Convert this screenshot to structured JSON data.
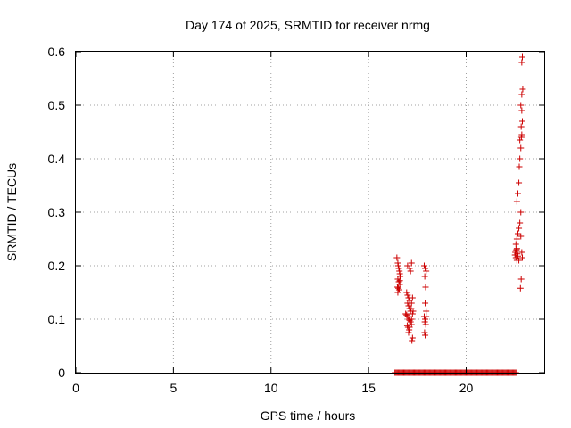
{
  "chart_data": {
    "type": "scatter",
    "title": "Day 174 of 2025, SRMTID for receiver nrmg",
    "xlabel": "GPS time / hours",
    "ylabel": "SRMTID / TECUs",
    "xlim": [
      0,
      24
    ],
    "ylim": [
      0,
      0.6
    ],
    "x_ticks": [
      "0",
      "5",
      "10",
      "15",
      "20"
    ],
    "y_ticks": [
      "0",
      "0.1",
      "0.2",
      "0.3",
      "0.4",
      "0.5",
      "0.6"
    ],
    "grid": true,
    "marker": "plus",
    "color": "#cc0000",
    "series": [
      {
        "x": [
          16.45,
          16.5,
          16.52,
          16.55,
          16.58,
          16.6,
          16.62,
          16.5,
          16.55,
          16.6,
          16.48,
          16.53,
          16.57,
          16.5,
          16.6,
          16.95,
          17.0,
          17.05,
          17.1,
          17.0,
          17.05,
          17.1,
          17.15,
          16.9,
          16.95,
          17.0,
          17.05,
          17.1,
          17.15,
          17.2,
          16.98,
          17.02,
          17.08,
          17.12,
          17.18,
          17.2,
          17.25,
          17.0,
          17.1,
          17.15,
          17.2,
          17.22,
          17.25,
          17.05,
          17.1,
          17.2,
          17.25,
          17.28,
          17.85,
          17.9,
          17.95,
          17.88,
          17.92,
          17.9,
          17.95,
          17.85,
          17.9,
          17.88,
          17.93,
          17.87,
          17.9,
          17.95,
          22.5,
          22.55,
          22.6,
          22.52,
          22.58,
          22.62,
          22.55,
          22.6,
          22.65,
          22.7,
          22.55,
          22.6,
          22.65,
          22.7,
          22.75,
          22.8,
          22.6,
          22.65,
          22.7,
          22.72,
          22.75,
          22.8,
          22.75,
          22.85,
          22.82,
          22.88,
          22.85,
          22.8,
          22.85,
          22.9,
          22.85,
          22.88,
          22.82,
          22.78,
          22.8,
          22.85,
          22.88,
          22.83
        ],
        "y": [
          0.215,
          0.205,
          0.2,
          0.195,
          0.19,
          0.185,
          0.18,
          0.175,
          0.17,
          0.165,
          0.16,
          0.158,
          0.155,
          0.15,
          0.172,
          0.15,
          0.145,
          0.14,
          0.135,
          0.13,
          0.125,
          0.12,
          0.115,
          0.11,
          0.108,
          0.105,
          0.1,
          0.098,
          0.095,
          0.09,
          0.088,
          0.085,
          0.08,
          0.11,
          0.12,
          0.13,
          0.14,
          0.2,
          0.195,
          0.19,
          0.205,
          0.06,
          0.065,
          0.075,
          0.085,
          0.1,
          0.11,
          0.115,
          0.2,
          0.195,
          0.19,
          0.18,
          0.16,
          0.13,
          0.115,
          0.105,
          0.1,
          0.095,
          0.09,
          0.075,
          0.07,
          0.105,
          0.22,
          0.215,
          0.21,
          0.225,
          0.23,
          0.222,
          0.228,
          0.232,
          0.218,
          0.21,
          0.24,
          0.25,
          0.26,
          0.27,
          0.28,
          0.3,
          0.32,
          0.335,
          0.355,
          0.385,
          0.4,
          0.42,
          0.435,
          0.445,
          0.46,
          0.47,
          0.49,
          0.5,
          0.52,
          0.53,
          0.58,
          0.59,
          0.175,
          0.158,
          0.255,
          0.225,
          0.215,
          0.44
        ]
      },
      {
        "x_start": 16.35,
        "x_end": 22.55,
        "x_step": 0.05,
        "y": 0
      }
    ]
  }
}
